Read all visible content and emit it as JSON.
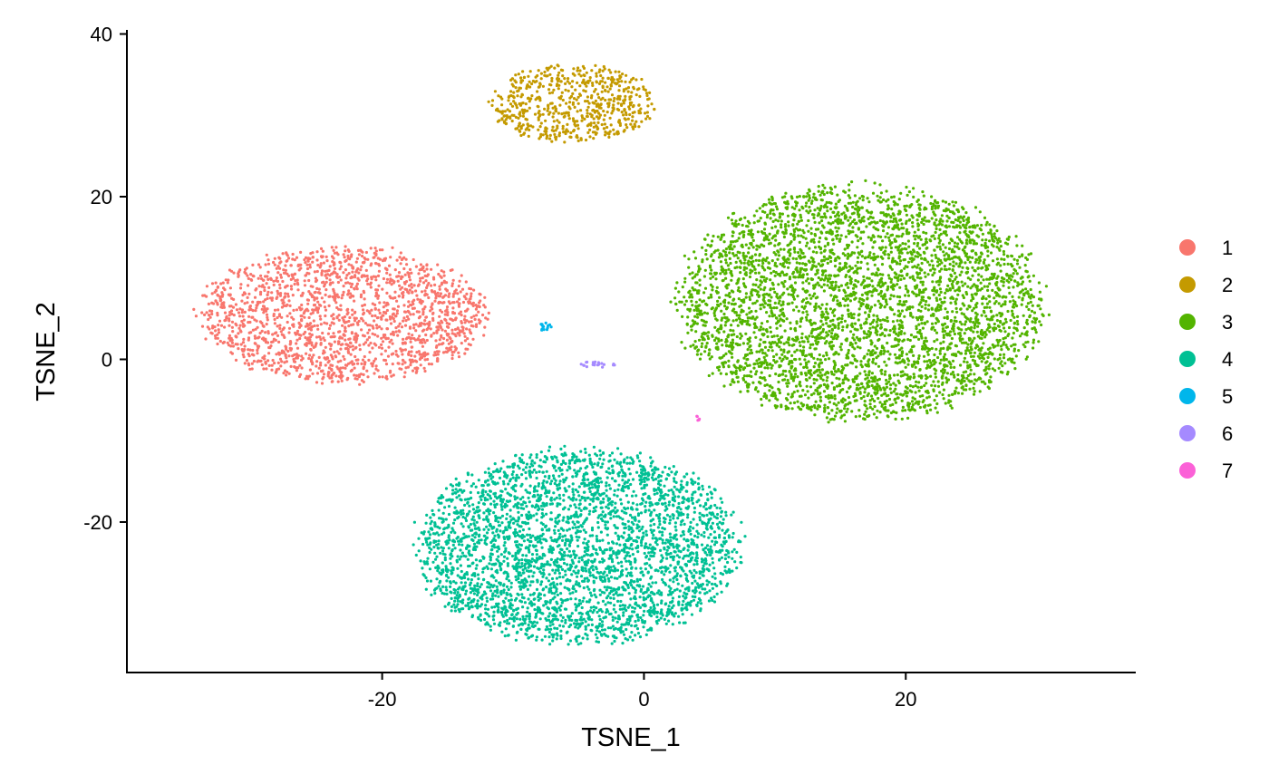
{
  "chart_data": {
    "type": "scatter",
    "title": "",
    "xlabel": "TSNE_1",
    "ylabel": "TSNE_2",
    "xlim": [
      -39.5,
      37.5
    ],
    "ylim": [
      -38.5,
      40.5
    ],
    "xticks": [
      -20,
      0,
      20
    ],
    "yticks": [
      -20,
      0,
      20,
      40
    ],
    "xtick_labels": [
      "-20",
      "0",
      "20"
    ],
    "ytick_labels": [
      "-20",
      "0",
      "20",
      "40"
    ],
    "grid": false,
    "legend_position": "right",
    "series": [
      {
        "name": "1",
        "color": "#F8766D",
        "points": 1800,
        "center": [
          -23,
          5.5
        ],
        "spread": [
          11,
          8.5
        ]
      },
      {
        "name": "2",
        "color": "#C49A00",
        "points": 620,
        "center": [
          -5.5,
          31.5
        ],
        "spread": [
          6.5,
          4.8
        ]
      },
      {
        "name": "3",
        "color": "#53B400",
        "points": 4200,
        "center": [
          16.5,
          7
        ],
        "spread": [
          14,
          14.5
        ]
      },
      {
        "name": "4",
        "color": "#00C094",
        "points": 3400,
        "center": [
          -5,
          -23
        ],
        "spread": [
          12.5,
          12
        ]
      },
      {
        "name": "5",
        "color": "#00B6EB",
        "points": 14,
        "center": [
          -7.5,
          4
        ],
        "spread": [
          0.6,
          0.5
        ]
      },
      {
        "name": "6",
        "color": "#A58AFF",
        "points": 20,
        "center": [
          -3.5,
          -0.6
        ],
        "spread": [
          1.3,
          0.4
        ]
      },
      {
        "name": "7",
        "color": "#FB61D7",
        "points": 5,
        "center": [
          4.2,
          -7.2
        ],
        "spread": [
          0.3,
          0.3
        ]
      }
    ]
  }
}
